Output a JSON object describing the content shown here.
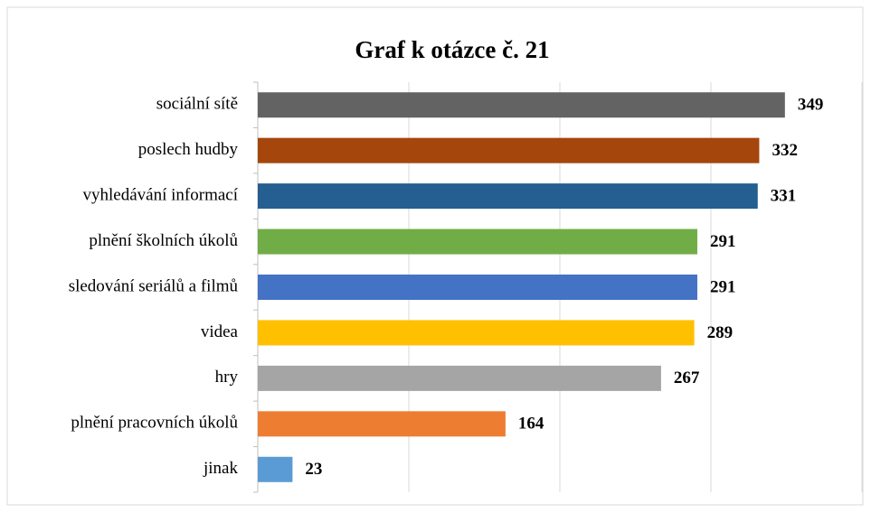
{
  "chart_data": {
    "type": "barh",
    "title": "Graf k otázce č. 21",
    "categories": [
      "sociální sítě",
      "poslech hudby",
      "vyhledávání informací",
      "plnění školních úkolů",
      "sledování seriálů a filmů",
      "videa",
      "hry",
      "plnění pracovních úkolů",
      "jinak"
    ],
    "values": [
      349,
      332,
      331,
      291,
      291,
      289,
      267,
      164,
      23
    ],
    "colors": [
      "#636363",
      "#a5460c",
      "#255e91",
      "#70ad47",
      "#4472c4",
      "#ffc000",
      "#a5a5a5",
      "#ed7d31",
      "#5b9bd5"
    ],
    "xlim": [
      0,
      400
    ],
    "xticks": [
      0,
      100,
      200,
      300,
      400
    ],
    "grid": true
  }
}
